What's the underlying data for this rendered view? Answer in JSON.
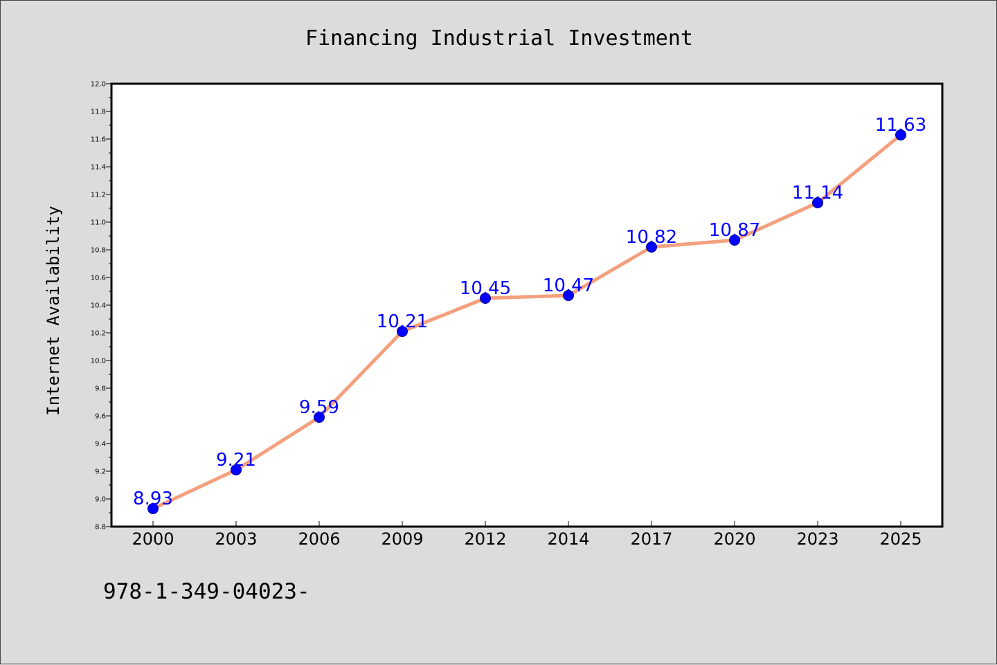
{
  "footer_text": "978-1-349-04023-",
  "chart_data": {
    "type": "line",
    "title": "Financing Industrial Investment",
    "xlabel": "",
    "ylabel": "Internet Availability",
    "categories": [
      "2000",
      "2003",
      "2006",
      "2009",
      "2012",
      "2014",
      "2017",
      "2020",
      "2023",
      "2025"
    ],
    "series": [
      {
        "values": [
          8.93,
          9.21,
          9.59,
          10.21,
          10.45,
          10.47,
          10.82,
          10.87,
          11.14,
          11.63
        ],
        "data_labels": [
          "8.93",
          "9.21",
          "9.59",
          "10.21",
          "10.45",
          "10.47",
          "10.82",
          "10.87",
          "11.14",
          "11.63"
        ],
        "line_color": "#f4a07e",
        "marker_color": "#0000ff",
        "label_color": "#0000ff"
      }
    ],
    "ylim": [
      8.8,
      12.0
    ],
    "yticks": [
      "8.8",
      "9.0",
      "9.2",
      "9.4",
      "9.6",
      "9.8",
      "10.0",
      "10.2",
      "10.4",
      "10.6",
      "10.8",
      "11.0",
      "11.2",
      "11.4",
      "11.6",
      "11.8",
      "12.0"
    ],
    "grid": false,
    "legend": "none",
    "background_color": "#dcdcdc",
    "plot_background_color": "#ffffff"
  }
}
